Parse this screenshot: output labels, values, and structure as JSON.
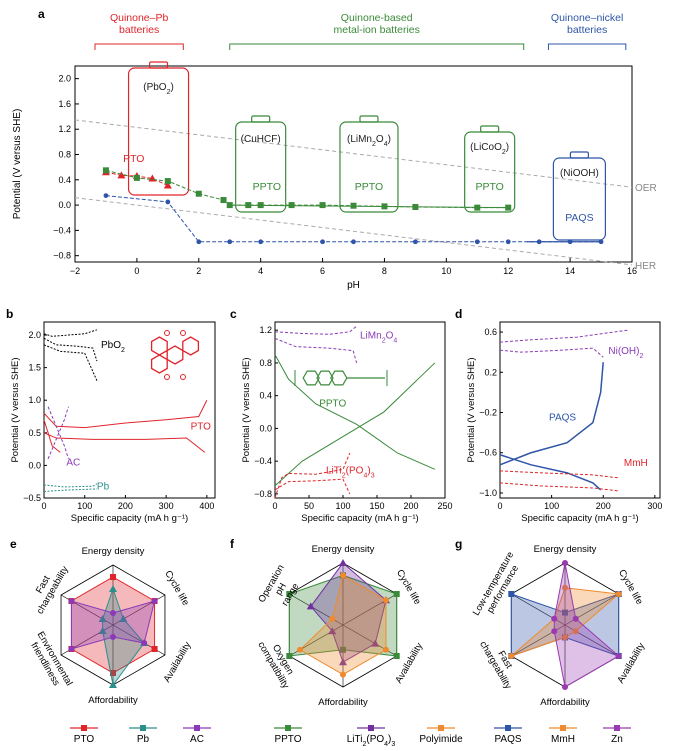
{
  "panels": {
    "a": "a",
    "b": "b",
    "c": "c",
    "d": "d",
    "e": "e",
    "f": "f",
    "g": "g"
  },
  "colors": {
    "red": "#e0242a",
    "green": "#3a8a3a",
    "blue": "#2e55a8",
    "purple": "#8a3ab9",
    "teal": "#2a8f8a",
    "orange": "#f08a2c",
    "grey": "#9a9a9a",
    "darkpurple": "#7030a0"
  },
  "chart_data": [
    {
      "id": "a",
      "type": "line",
      "xlabel": "pH",
      "ylabel": "Potential (V versus SHE)",
      "xlim": [
        -2,
        16
      ],
      "ylim": [
        -0.9,
        2.2
      ],
      "xticks": [
        "−2",
        "0",
        "2",
        "4",
        "6",
        "8",
        "10",
        "12",
        "14",
        "16"
      ],
      "yticks": [
        "−0.8",
        "−0.4",
        "0.0",
        "0.4",
        "0.8",
        "1.2",
        "1.6",
        "2.0"
      ],
      "groups": [
        {
          "label": "Quinone–Pb\nbatteries",
          "x": [
            -2,
            1.5
          ],
          "color": "#e0242a"
        },
        {
          "label": "Quinone-based\nmetal-ion batteries",
          "x": [
            3,
            12.5
          ],
          "color": "#3a8a3a"
        },
        {
          "label": "Quinone–nickel\nbatteries",
          "x": [
            13.3,
            15.8
          ],
          "color": "#2e55a8"
        }
      ],
      "reference_lines": [
        {
          "name": "OER",
          "x": [
            -2,
            16
          ],
          "y": [
            1.347,
            0.283
          ]
        },
        {
          "name": "HER",
          "x": [
            -2,
            16
          ],
          "y": [
            0.118,
            -0.946
          ]
        }
      ],
      "series": [
        {
          "name": "PTO",
          "color": "#e0242a",
          "marker": "triangle",
          "x": [
            -1,
            -0.5,
            0,
            0.5,
            1
          ],
          "y": [
            0.52,
            0.47,
            0.46,
            0.42,
            0.31
          ]
        },
        {
          "name": "PPTO",
          "color": "#3a8a3a",
          "marker": "square",
          "x": [
            -1,
            0,
            1,
            2,
            2.8,
            3,
            3.6,
            4,
            5,
            6,
            7,
            8,
            9,
            11,
            12
          ],
          "y": [
            0.55,
            0.43,
            0.38,
            0.18,
            0.08,
            0.0,
            0.0,
            0.0,
            0.0,
            0.0,
            -0.01,
            -0.02,
            -0.03,
            -0.04,
            -0.04
          ]
        },
        {
          "name": "PAQS",
          "color": "#2e55a8",
          "marker": "circle",
          "x": [
            -1,
            1,
            2,
            3,
            4,
            6,
            7,
            9,
            11,
            12,
            13,
            14,
            15
          ],
          "y": [
            0.15,
            0.05,
            -0.58,
            -0.58,
            -0.58,
            -0.58,
            -0.58,
            -0.58,
            -0.58,
            -0.58,
            -0.58,
            -0.58,
            -0.58
          ]
        }
      ],
      "battery_labels": [
        {
          "text": "(PbO2)",
          "x": 0.7,
          "color": "#e0242a"
        },
        {
          "text": "(CuHCF)",
          "x": 4,
          "color": "#3a8a3a"
        },
        {
          "text": "(LiMn2O4)",
          "x": 7.5,
          "color": "#3a8a3a"
        },
        {
          "text": "(LiCoO2)",
          "x": 11.4,
          "color": "#3a8a3a"
        },
        {
          "text": "(NiOOH)",
          "x": 14.3,
          "color": "#2e55a8"
        }
      ],
      "inline_labels": [
        {
          "text": "PTO",
          "color": "#e0242a"
        },
        {
          "text": "PPTO",
          "color": "#3a8a3a"
        },
        {
          "text": "PPTO",
          "color": "#3a8a3a"
        },
        {
          "text": "PPTO",
          "color": "#3a8a3a"
        },
        {
          "text": "PAQS",
          "color": "#2e55a8"
        }
      ]
    },
    {
      "id": "b",
      "type": "line",
      "xlabel": "Specific capacity (mA h g⁻¹)",
      "ylabel": "Potential (V versus SHE)",
      "xlim": [
        0,
        420
      ],
      "ylim": [
        -0.5,
        2.2
      ],
      "xticks": [
        "0",
        "100",
        "200",
        "300",
        "400"
      ],
      "yticks": [
        "−0.5",
        "0.0",
        "0.5",
        "1.0",
        "1.5",
        "2.0"
      ],
      "labels": [
        "PbO2",
        "PTO",
        "AC",
        "Pb"
      ]
    },
    {
      "id": "c",
      "type": "line",
      "xlabel": "Specific capacity (mA h g⁻¹)",
      "ylabel": "Potential (V versus SHE)",
      "xlim": [
        0,
        250
      ],
      "ylim": [
        -0.85,
        1.3
      ],
      "xticks": [
        "0",
        "50",
        "100",
        "150",
        "200",
        "250"
      ],
      "yticks": [
        "−0.8",
        "−0.4",
        "0.0",
        "0.4",
        "0.8",
        "1.2"
      ],
      "labels": [
        "LiMn2O4",
        "PPTO",
        "LiTi2(PO4)3"
      ]
    },
    {
      "id": "d",
      "type": "line",
      "xlabel": "Specific capacity (mA h g⁻¹)",
      "ylabel": "Potential (V versus SHE)",
      "xlim": [
        0,
        310
      ],
      "ylim": [
        -1.05,
        0.7
      ],
      "xticks": [
        "0",
        "100",
        "200",
        "300"
      ],
      "yticks": [
        "−1.0",
        "−0.6",
        "−0.2",
        "0.2",
        "0.6"
      ],
      "labels": [
        "Ni(OH)2",
        "PAQS",
        "MmH"
      ]
    },
    {
      "id": "e",
      "type": "radar",
      "axes": [
        "Energy density",
        "Cycle life",
        "Availability",
        "Affordability",
        "Environmental friendliness",
        "Fast chargeability"
      ],
      "series": [
        {
          "name": "PTO",
          "color": "#e0242a",
          "values": [
            0.8,
            0.8,
            0.8,
            0.8,
            0.8,
            0.8
          ]
        },
        {
          "name": "Pb",
          "color": "#2a8f8a",
          "values": [
            0.6,
            0.2,
            0.6,
            1.0,
            0.2,
            0.2
          ]
        },
        {
          "name": "AC",
          "color": "#8a3ab9",
          "values": [
            0.2,
            0.8,
            0.6,
            0.2,
            0.8,
            0.8
          ]
        }
      ]
    },
    {
      "id": "f",
      "type": "radar",
      "axes": [
        "Energy density",
        "Cycle life",
        "Availability",
        "Affordability",
        "Oxygen compatibility",
        "Operation pH range"
      ],
      "series": [
        {
          "name": "PPTO",
          "color": "#3a8a3a",
          "values": [
            0.8,
            1.0,
            1.0,
            0.4,
            1.0,
            1.0
          ]
        },
        {
          "name": "LiTi2(PO4)3",
          "color": "#7030a0",
          "values": [
            1.0,
            0.8,
            0.6,
            0.6,
            0.2,
            0.6
          ]
        },
        {
          "name": "Polyimide",
          "color": "#f08a2c",
          "values": [
            0.8,
            0.8,
            0.8,
            0.8,
            0.8,
            0.2
          ]
        }
      ]
    },
    {
      "id": "g",
      "type": "radar",
      "axes": [
        "Energy density",
        "Cycle life",
        "Availability",
        "Affordability",
        "Fast chargeability",
        "Low-temperature performance"
      ],
      "series": [
        {
          "name": "PAQS",
          "color": "#2e55a8",
          "values": [
            0.2,
            1.0,
            1.0,
            0.2,
            1.0,
            1.0
          ]
        },
        {
          "name": "MmH",
          "color": "#f08a2c",
          "values": [
            0.6,
            1.0,
            0.2,
            0.2,
            1.0,
            0.2
          ]
        },
        {
          "name": "Zn",
          "color": "#9a3ab0",
          "values": [
            1.0,
            0.2,
            1.0,
            1.0,
            0.2,
            0.2
          ]
        }
      ]
    }
  ]
}
